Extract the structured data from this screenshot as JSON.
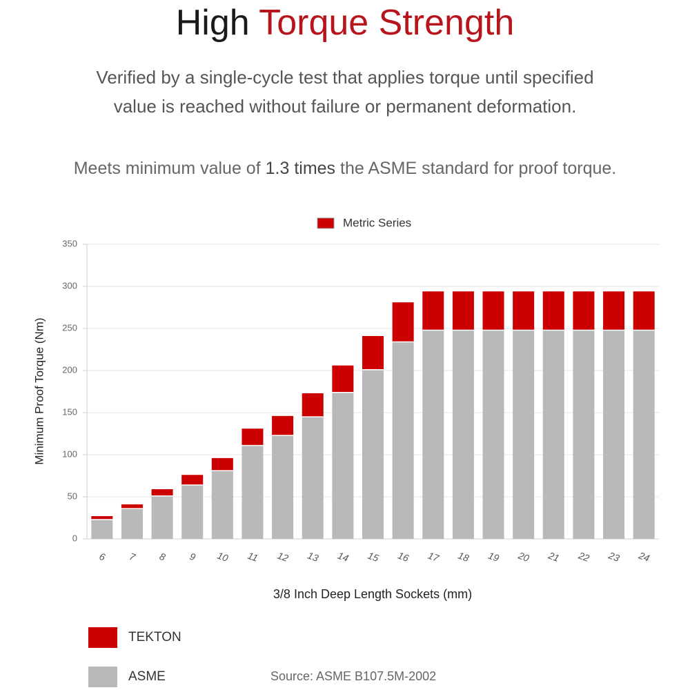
{
  "header": {
    "title_start": "High",
    "title_highlight": "Torque Strength",
    "subtitle_lines": [
      "Verified by a single-cycle test that applies torque until specified",
      "value is reached without failure or permanent deformation."
    ],
    "note_start": "Meets minimum value of",
    "note_bold": "1.3 times",
    "note_end": "the ASME standard for proof torque."
  },
  "chart_data": {
    "type": "stacked_bar",
    "dataset_label": "Metric Series",
    "x_label": "3/8 Inch Deep Length Sockets (mm)",
    "y_label": "Minimum Proof Torque (Nm)",
    "categories": [
      "6",
      "7",
      "8",
      "9",
      "10",
      "11",
      "12",
      "13",
      "14",
      "15",
      "16",
      "17",
      "18",
      "19",
      "20",
      "21",
      "22",
      "23",
      "24"
    ],
    "series": [
      {
        "name": "ASME",
        "color": "#b9b9b9",
        "values": [
          23,
          36,
          51,
          64,
          81,
          111,
          123,
          145,
          174,
          201,
          234,
          248,
          248,
          248,
          248,
          248,
          248,
          248,
          248
        ]
      },
      {
        "name": "TEKTON",
        "color": "#cc0000",
        "values": [
          4,
          5,
          8,
          12,
          15,
          20,
          23,
          28,
          32,
          40,
          47,
          46,
          46,
          46,
          46,
          46,
          46,
          46,
          46
        ]
      }
    ],
    "legend_order": [
      "TEKTON",
      "ASME"
    ],
    "ylim": [
      0,
      350
    ],
    "yticks": [
      0,
      50,
      100,
      150,
      200,
      250,
      300,
      350
    ],
    "grid": true,
    "source": "Source: ASME B107.5M-2002"
  }
}
